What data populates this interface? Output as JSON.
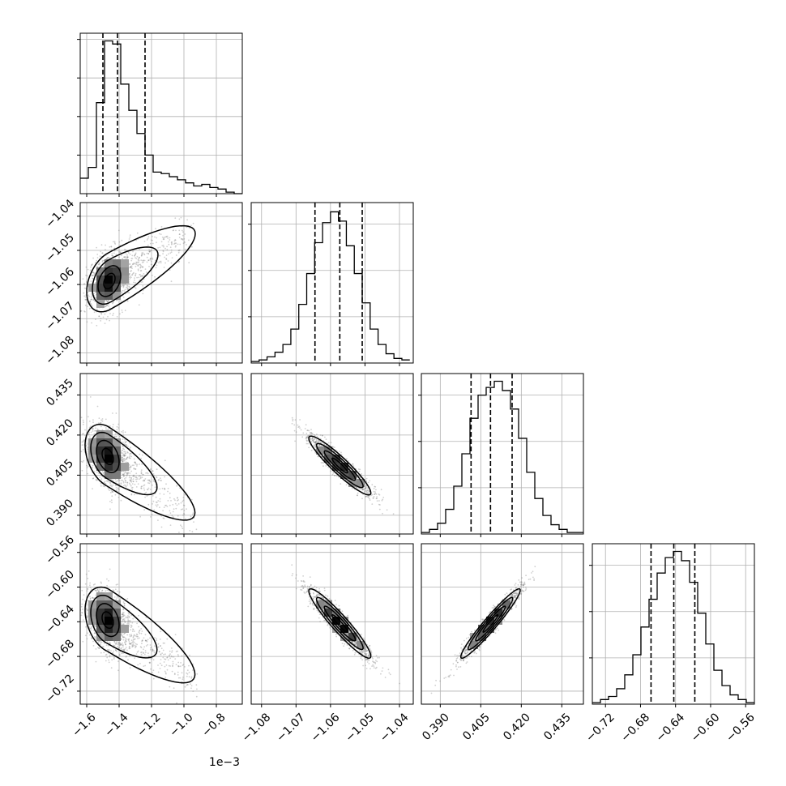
{
  "chart_data": {
    "type": "corner",
    "title": "",
    "grid": true,
    "parameters": [
      {
        "name": "",
        "range": [
          -1.64,
          -0.64
        ],
        "ticks": [
          -1.6,
          -1.4,
          -1.2,
          -1.0,
          -0.8
        ],
        "tick_labels": [
          "−1.6",
          "−1.4",
          "−1.2",
          "−1.0",
          "−0.8"
        ],
        "offset_label": "1e−3",
        "quantiles": [
          -1.5,
          -1.41,
          -1.24
        ],
        "histogram": {
          "bin_start": -1.64,
          "bin_width": 0.05,
          "counts": [
            0.1,
            0.17,
            0.59,
            0.99,
            0.97,
            0.71,
            0.54,
            0.39,
            0.25,
            0.14,
            0.13,
            0.11,
            0.09,
            0.07,
            0.05,
            0.06,
            0.04,
            0.03,
            0.01,
            0.0
          ],
          "y_grid": [
            0.25,
            0.5,
            0.75,
            1.0
          ]
        }
      },
      {
        "name": "",
        "range": [
          -1.083,
          -1.036
        ],
        "ticks": [
          -1.08,
          -1.07,
          -1.06,
          -1.05,
          -1.04
        ],
        "tick_labels": [
          "−1.08",
          "−1.07",
          "−1.06",
          "−1.05",
          "−1.04"
        ],
        "quantiles": [
          -1.0645,
          -1.0573,
          -1.0508
        ],
        "histogram": {
          "bin_start": -1.083,
          "bin_width": 0.0023,
          "counts": [
            0.01,
            0.02,
            0.04,
            0.07,
            0.12,
            0.22,
            0.38,
            0.58,
            0.78,
            0.91,
            0.98,
            0.92,
            0.76,
            0.58,
            0.39,
            0.22,
            0.12,
            0.06,
            0.03,
            0.02
          ],
          "y_grid": [
            0.3,
            0.6,
            0.9
          ]
        }
      },
      {
        "name": "",
        "range": [
          0.383,
          0.443
        ],
        "ticks": [
          0.39,
          0.405,
          0.42,
          0.435
        ],
        "tick_labels": [
          "0.390",
          "0.405",
          "0.420",
          "0.435"
        ],
        "quantiles": [
          0.4014,
          0.4086,
          0.4166
        ],
        "histogram": {
          "bin_start": 0.383,
          "bin_width": 0.003,
          "counts": [
            0.01,
            0.03,
            0.07,
            0.16,
            0.31,
            0.52,
            0.75,
            0.9,
            0.95,
            0.99,
            0.93,
            0.81,
            0.62,
            0.4,
            0.23,
            0.12,
            0.06,
            0.03,
            0.01,
            0.01
          ],
          "y_grid": [
            0.3,
            0.6,
            0.9
          ]
        }
      },
      {
        "name": "",
        "range": [
          -0.735,
          -0.55
        ],
        "ticks": [
          -0.72,
          -0.68,
          -0.64,
          -0.6,
          -0.56
        ],
        "tick_labels": [
          "−0.72",
          "−0.68",
          "−0.64",
          "−0.60",
          "−0.56"
        ],
        "quantiles": [
          -0.668,
          -0.642,
          -0.618
        ],
        "histogram": {
          "bin_start": -0.735,
          "bin_width": 0.00925,
          "counts": [
            0.01,
            0.03,
            0.05,
            0.1,
            0.19,
            0.32,
            0.5,
            0.68,
            0.85,
            0.95,
            0.99,
            0.93,
            0.79,
            0.59,
            0.39,
            0.22,
            0.12,
            0.06,
            0.03,
            0.01
          ],
          "y_grid": [
            0.3,
            0.6,
            0.9
          ]
        }
      }
    ],
    "pairs": [
      {
        "row": 1,
        "col": 0,
        "center": [
          -1.46,
          -1.059
        ],
        "sd": [
          0.07,
          0.0045
        ],
        "rho": 0.35,
        "tail_to": [
          -0.95,
          -1.045
        ]
      },
      {
        "row": 2,
        "col": 0,
        "center": [
          -1.47,
          0.412
        ],
        "sd": [
          0.07,
          0.006
        ],
        "rho": -0.35,
        "tail_to": [
          -0.95,
          0.39
        ]
      },
      {
        "row": 2,
        "col": 1,
        "center": [
          -1.0573,
          0.4086
        ],
        "sd": [
          0.0045,
          0.0055
        ],
        "rho": -0.93
      },
      {
        "row": 3,
        "col": 0,
        "center": [
          -1.47,
          -0.638
        ],
        "sd": [
          0.07,
          0.019
        ],
        "rho": -0.3,
        "tail_to": [
          -0.95,
          -0.705
        ]
      },
      {
        "row": 3,
        "col": 1,
        "center": [
          -1.0573,
          -0.642
        ],
        "sd": [
          0.0045,
          0.02
        ],
        "rho": -0.94
      },
      {
        "row": 3,
        "col": 2,
        "center": [
          0.4086,
          -0.642
        ],
        "sd": [
          0.0055,
          0.02
        ],
        "rho": 0.96
      }
    ],
    "contour_levels_sigma": [
      0.5,
      1.0,
      1.5,
      2.0
    ]
  }
}
